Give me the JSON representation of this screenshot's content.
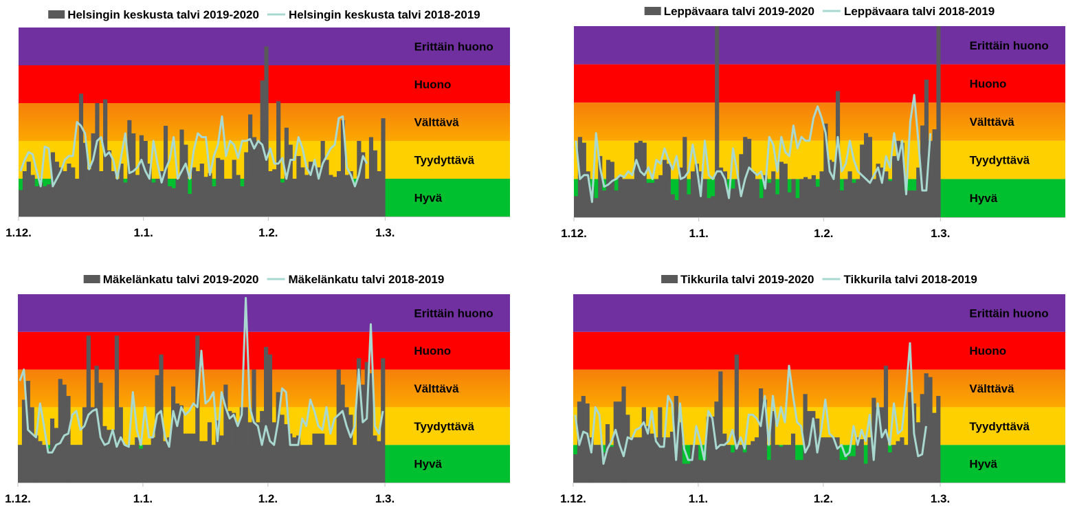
{
  "colors": {
    "bar": "#595959",
    "line": "#a8d8d0",
    "erittain_huono": "#7030a0",
    "huono": "#ff0000",
    "valttava_top": "#f57f0a",
    "valttava_bottom": "#fca800",
    "tyydyttava": "#ffd000",
    "hyva": "#00c030"
  },
  "bands": [
    "Hyvä",
    "Tyydyttävä",
    "Välttävä",
    "Huono",
    "Erittäin huono"
  ],
  "x_ticks": [
    "1.12.",
    "1.1.",
    "1.2.",
    "1.3."
  ],
  "chart_data": [
    {
      "type": "bar+line",
      "legend": [
        "Helsingin keskusta talvi 2019-2020",
        "Helsingin keskusta talvi 2018-2019"
      ],
      "legend_placement": "top",
      "ylim": [
        0,
        5
      ],
      "xlim_days_from_1_12": [
        0,
        122
      ],
      "grid": false,
      "series": [
        {
          "name": "Helsingin keskusta talvi 2019-2020",
          "type": "bar",
          "values": [
            0.7,
            1.2,
            1.45,
            1.1,
            0.8,
            0.9,
            0.8,
            0.85,
            1.7,
            1.45,
            1.3,
            1.2,
            1.4,
            1.3,
            1.0,
            3.25,
            1.95,
            1.25,
            2.2,
            3.0,
            1.2,
            3.1,
            1.75,
            1.2,
            1.0,
            1.4,
            0.9,
            2.55,
            2.2,
            1.1,
            2.15,
            2.0,
            1.4,
            0.9,
            1.0,
            1.2,
            2.4,
            0.8,
            0.75,
            1.0,
            2.3,
            1.9,
            0.6,
            1.3,
            1.2,
            1.4,
            1.05,
            1.15,
            0.8,
            1.55,
            1.5,
            1.0,
            1.0,
            1.5,
            1.1,
            0.8,
            1.7,
            2.7,
            2.1,
            2.0,
            3.6,
            4.5,
            1.2,
            1.25,
            3.05,
            0.9,
            2.35,
            1.9,
            1.0,
            1.6,
            1.3,
            1.1,
            1.45,
            1.35,
            1.3,
            2.0,
            1.5,
            1.1,
            1.05,
            1.2,
            2.55,
            1.1,
            1.2,
            0.85,
            2.0,
            1.7,
            1.0,
            2.1,
            1.75,
            1.2,
            2.6
          ]
        },
        {
          "name": "Helsingin keskusta talvi 2018-2019",
          "type": "line",
          "values": [
            1.2,
            1.5,
            1.7,
            1.65,
            1.2,
            0.8,
            1.85,
            1.8,
            0.8,
            1.0,
            1.2,
            1.5,
            1.6,
            1.6,
            2.5,
            2.4,
            2.2,
            1.25,
            1.5,
            2.0,
            2.1,
            1.6,
            1.7,
            1.5,
            1.0,
            1.6,
            2.2,
            1.15,
            1.2,
            1.3,
            1.5,
            1.2,
            1.0,
            2.0,
            1.4,
            0.9,
            1.25,
            1.5,
            2.1,
            1.0,
            1.2,
            1.4,
            1.0,
            1.75,
            2.2,
            2.1,
            2.1,
            1.1,
            1.6,
            1.9,
            2.65,
            1.6,
            2.0,
            1.9,
            1.55,
            2.0,
            2.0,
            2.05,
            1.8,
            2.0,
            1.9,
            1.5,
            1.8,
            1.4,
            1.4,
            1.55,
            1.0,
            1.5,
            1.5,
            2.1,
            1.8,
            1.3,
            1.1,
            1.5,
            1.0,
            1.4,
            1.6,
            1.8,
            1.9,
            2.6,
            2.65,
            1.3,
            1.1,
            0.8,
            1.1,
            1.6,
            1.4
          ]
        }
      ]
    },
    {
      "type": "bar+line",
      "legend": [
        "Leppävaara talvi 2019-2020",
        "Leppävaara talvi 2018-2019"
      ],
      "legend_placement": "top",
      "ylim": [
        0,
        5
      ],
      "xlim_days_from_1_12": [
        0,
        122
      ],
      "grid": false,
      "series": [
        {
          "name": "Leppävaara talvi 2019-2020",
          "type": "bar",
          "values": [
            0.55,
            2.1,
            1.95,
            1.2,
            0.8,
            0.5,
            1.6,
            0.7,
            1.5,
            1.45,
            0.7,
            1.1,
            1.0,
            1.0,
            1.0,
            1.95,
            2.0,
            1.95,
            0.9,
            0.9,
            1.0,
            1.1,
            1.5,
            1.4,
            0.6,
            0.45,
            1.3,
            2.1,
            0.6,
            1.2,
            1.4,
            1.2,
            1.0,
            0.5,
            0.55,
            5.0,
            1.3,
            1.2,
            0.7,
            0.75,
            1.0,
            1.65,
            2.1,
            2.05,
            1.2,
            1.0,
            0.5,
            1.1,
            0.9,
            1.2,
            0.6,
            1.45,
            1.4,
            0.65,
            1.0,
            0.5,
            1.0,
            1.05,
            1.0,
            1.1,
            0.8,
            1.2,
            2.45,
            1.5,
            1.45,
            3.3,
            0.7,
            1.0,
            1.2,
            0.9,
            1.0,
            1.9,
            2.2,
            2.1,
            1.0,
            1.4,
            1.3,
            1.2,
            0.95,
            1.6,
            2.0,
            1.95,
            0.7,
            0.7,
            0.7,
            1.3,
            2.4,
            3.6,
            2.0,
            2.3,
            5.0
          ]
        },
        {
          "name": "Leppävaara talvi 2018-2019",
          "type": "line",
          "values": [
            2.0,
            1.0,
            1.1,
            1.1,
            0.4,
            2.2,
            1.3,
            0.8,
            0.85,
            0.95,
            1.0,
            1.1,
            1.05,
            1.2,
            1.1,
            1.5,
            1.2,
            1.1,
            1.3,
            1.0,
            1.5,
            1.4,
            1.8,
            1.5,
            1.25,
            1.6,
            1.0,
            1.05,
            1.2,
            1.9,
            1.3,
            0.55,
            2.0,
            1.1,
            1.0,
            1.2,
            1.2,
            1.0,
            0.5,
            1.8,
            1.2,
            0.55,
            1.0,
            1.3,
            1.2,
            1.1,
            1.2,
            0.75,
            2.1,
            1.9,
            1.2,
            2.1,
            1.7,
            1.6,
            2.4,
            1.8,
            2.1,
            2.0,
            2.0,
            2.6,
            2.9,
            2.6,
            2.2,
            1.2,
            1.0,
            2.1,
            1.2,
            1.4,
            2.0,
            1.5,
            1.2,
            1.1,
            1.0,
            0.9,
            1.1,
            1.3,
            0.9,
            1.6,
            1.3,
            2.2,
            1.5,
            2.0,
            0.6,
            2.5,
            3.2,
            2.0,
            0.7,
            0.7,
            2.2
          ]
        }
      ]
    },
    {
      "type": "bar+line",
      "legend": [
        "Mäkelänkatu talvi 2019-2020",
        "Mäkelänkatu talvi 2018-2019"
      ],
      "legend_placement": "top",
      "ylim": [
        0,
        5
      ],
      "xlim_days_from_1_12": [
        0,
        122
      ],
      "grid": false,
      "series": [
        {
          "name": "Mäkelänkatu talvi 2019-2020",
          "type": "bar",
          "values": [
            1.0,
            2.2,
            2.7,
            2.0,
            1.25,
            1.1,
            1.0,
            0.9,
            1.7,
            1.45,
            2.75,
            2.6,
            2.3,
            1.0,
            1.0,
            1.0,
            2.0,
            3.9,
            2.0,
            3.1,
            2.65,
            1.5,
            1.4,
            1.4,
            3.9,
            2.0,
            1.0,
            1.0,
            1.0,
            1.2,
            0.9,
            1.0,
            1.0,
            1.2,
            2.85,
            3.4,
            1.1,
            1.2,
            2.55,
            2.1,
            2.05,
            1.3,
            1.3,
            1.3,
            3.9,
            1.1,
            1.1,
            1.6,
            1.0,
            1.65,
            1.25,
            2.6,
            1.9,
            1.85,
            1.6,
            2.0,
            2.0,
            1.6,
            3.0,
            1.6,
            1.9,
            3.6,
            3.4,
            1.6,
            2.4,
            1.8,
            1.55,
            1.3,
            1.2,
            1.25,
            1.0,
            1.0,
            1.0,
            1.3,
            1.3,
            1.3,
            1.0,
            1.0,
            1.0,
            3.0,
            2.6,
            2.0,
            1.8,
            1.0,
            3.3,
            2.6,
            3.2,
            2.9,
            1.25,
            1.1,
            3.3
          ]
        },
        {
          "name": "Mäkelänkatu talvi 2018-2019",
          "type": "line",
          "values": [
            2.7,
            3.0,
            1.4,
            1.3,
            1.2,
            2.1,
            1.5,
            0.8,
            0.8,
            1.0,
            1.05,
            1.25,
            1.3,
            1.8,
            1.9,
            1.4,
            1.5,
            1.8,
            1.9,
            1.95,
            1.2,
            1.0,
            1.05,
            1.4,
            0.95,
            1.2,
            1.0,
            0.95,
            2.4,
            1.4,
            1.0,
            2.0,
            1.2,
            1.2,
            1.8,
            1.9,
            1.2,
            0.95,
            1.9,
            1.5,
            2.0,
            1.8,
            1.9,
            2.1,
            2.0,
            3.5,
            2.1,
            2.2,
            2.4,
            1.1,
            2.4,
            2.0,
            1.7,
            1.8,
            1.5,
            1.8,
            4.9,
            2.0,
            1.6,
            1.5,
            1.0,
            1.5,
            1.1,
            1.0,
            1.6,
            2.5,
            2.4,
            1.0,
            1.0,
            1.0,
            1.7,
            1.5,
            2.2,
            1.9,
            1.5,
            1.4,
            2.0,
            1.3,
            1.7,
            1.8,
            1.9,
            1.5,
            1.2,
            1.5,
            3.0,
            1.6,
            1.7,
            4.2,
            1.5,
            1.3,
            1.9
          ]
        }
      ]
    },
    {
      "type": "bar+line",
      "legend": [
        "Tikkurila talvi 2019-2020",
        "Tikkurila talvi 2018-2019"
      ],
      "legend_placement": "top",
      "ylim": [
        0,
        5
      ],
      "xlim_days_from_1_12": [
        0,
        122
      ],
      "grid": false,
      "series": [
        {
          "name": "Tikkurila talvi 2019-2020",
          "type": "bar",
          "values": [
            0.75,
            2.15,
            2.3,
            2.1,
            1.2,
            1.0,
            1.0,
            0.8,
            1.55,
            0.95,
            2.15,
            2.15,
            2.55,
            1.8,
            1.2,
            1.2,
            1.2,
            2.0,
            1.5,
            1.3,
            1.2,
            2.0,
            1.2,
            1.2,
            1.35,
            2.3,
            1.6,
            0.5,
            0.5,
            1.0,
            1.0,
            0.6,
            0.6,
            1.75,
            1.75,
            2.15,
            2.95,
            1.3,
            1.0,
            0.8,
            3.4,
            1.0,
            0.8,
            1.0,
            1.1,
            1.2,
            2.5,
            2.2,
            0.6,
            1.9,
            1.0,
            0.95,
            1.0,
            1.0,
            1.3,
            0.6,
            0.6,
            2.35,
            1.9,
            1.9,
            1.7,
            1.2,
            1.2,
            1.2,
            1.2,
            1.2,
            0.6,
            0.6,
            0.7,
            0.7,
            1.2,
            1.15,
            0.5,
            1.2,
            2.25,
            2.0,
            2.0,
            3.1,
            0.8,
            1.0,
            1.1,
            1.2,
            1.0,
            2.4,
            2.1,
            1.6,
            2.35,
            2.9,
            2.8,
            1.85,
            2.3
          ]
        },
        {
          "name": "Tikkurila talvi 2018-2019",
          "type": "line",
          "values": [
            1.8,
            1.0,
            1.35,
            1.3,
            0.8,
            2.0,
            1.8,
            0.5,
            0.9,
            1.1,
            1.4,
            1.0,
            0.7,
            1.2,
            1.15,
            1.4,
            1.45,
            1.6,
            1.3,
            1.9,
            1.1,
            0.95,
            0.95,
            2.3,
            2.1,
            0.6,
            2.1,
            0.9,
            0.6,
            0.6,
            1.5,
            1.1,
            0.6,
            1.9,
            1.7,
            0.9,
            1.0,
            1.0,
            1.1,
            1.4,
            0.9,
            1.2,
            0.9,
            1.8,
            1.8,
            1.7,
            1.5,
            2.3,
            1.0,
            2.3,
            1.5,
            2.0,
            1.6,
            3.1,
            2.3,
            1.6,
            1.5,
            0.8,
            1.0,
            1.7,
            0.8,
            1.4,
            2.2,
            1.3,
            1.2,
            0.9,
            1.0,
            0.7,
            0.8,
            1.5,
            1.0,
            1.4,
            1.1,
            1.8,
            0.6,
            2.1,
            1.2,
            1.4,
            1.0,
            2.1,
            1.3,
            1.4,
            2.4,
            3.7,
            1.3,
            0.7,
            0.75,
            1.5
          ]
        }
      ]
    }
  ]
}
